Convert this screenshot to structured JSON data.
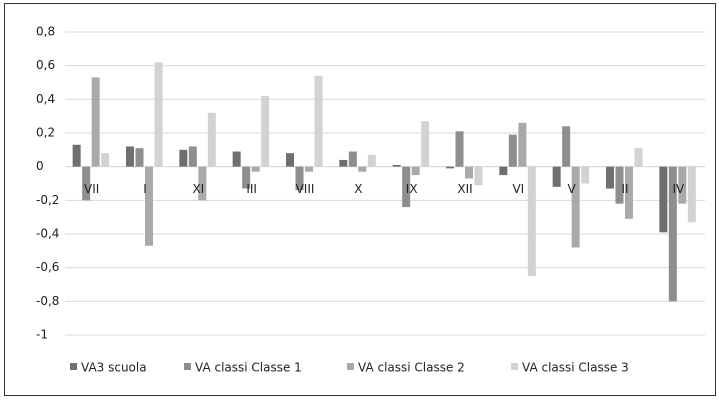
{
  "chart_data": {
    "type": "bar",
    "categories": [
      "VII",
      "I",
      "XI",
      "III",
      "VIII",
      "X",
      "IX",
      "XII",
      "VI",
      "V",
      "II",
      "IV"
    ],
    "series": [
      {
        "name": "VA3 scuola",
        "color": "#6f6f6f",
        "values": [
          0.13,
          0.12,
          0.1,
          0.09,
          0.08,
          0.04,
          0.01,
          -0.01,
          -0.05,
          -0.12,
          -0.13,
          -0.39
        ]
      },
      {
        "name": "VA classi Classe 1",
        "color": "#8e8e8e",
        "values": [
          -0.2,
          0.11,
          0.12,
          -0.13,
          -0.14,
          0.09,
          -0.24,
          0.21,
          0.19,
          0.24,
          -0.22,
          -0.8
        ]
      },
      {
        "name": "VA classi Classe 2",
        "color": "#a9a9a9",
        "values": [
          0.53,
          -0.47,
          -0.2,
          -0.03,
          -0.03,
          -0.03,
          -0.05,
          -0.07,
          0.26,
          -0.48,
          -0.31,
          -0.22
        ]
      },
      {
        "name": "VA classi Classe 3",
        "color": "#d2d2d2",
        "values": [
          0.08,
          0.62,
          0.32,
          0.42,
          0.54,
          0.07,
          0.27,
          -0.11,
          -0.65,
          -0.1,
          0.11,
          -0.33
        ]
      }
    ],
    "ylim": [
      -1,
      0.8
    ],
    "yticks": [
      -1,
      {
        "value": -0.8,
        "label": "-0,8"
      },
      {
        "value": -0.6,
        "label": "-0,6"
      },
      {
        "value": -0.4,
        "label": "-0,4"
      },
      {
        "value": -0.2,
        "label": "-0,2"
      },
      0,
      {
        "value": 0.2,
        "label": "0,2"
      },
      {
        "value": 0.4,
        "label": "0,4"
      },
      {
        "value": 0.6,
        "label": "0,6"
      },
      {
        "value": 0.8,
        "label": "0,8"
      }
    ],
    "grid": true,
    "legend": "bottom"
  }
}
